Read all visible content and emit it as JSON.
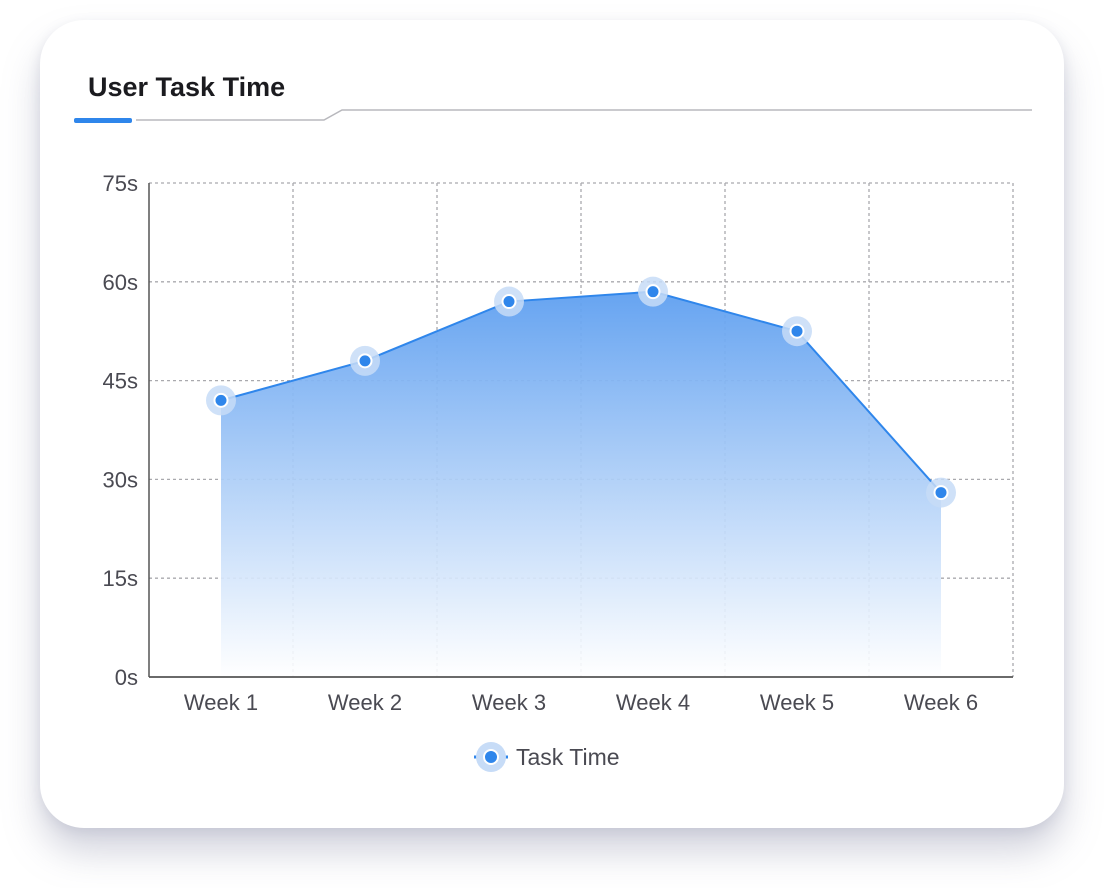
{
  "chart_data": {
    "type": "area",
    "title": "User Task Time",
    "categories": [
      "Week 1",
      "Week 2",
      "Week 3",
      "Week 4",
      "Week 5",
      "Week 6"
    ],
    "series": [
      {
        "name": "Task Time",
        "values": [
          42,
          48,
          57,
          58.5,
          52.5,
          28
        ]
      }
    ],
    "y_ticks": [
      "0s",
      "15s",
      "30s",
      "45s",
      "60s",
      "75s"
    ],
    "ylim": [
      0,
      75
    ],
    "grid": true,
    "legend_position": "bottom-center",
    "colors": {
      "line": "#2f86eb",
      "marker": "#2f86eb",
      "marker_halo": "#c7dcf7",
      "area_top": "#5e9ff0",
      "area_bottom": "#ffffff",
      "grid": "#a9a9ae",
      "axis": "#555555",
      "title_accent": "#2f86eb"
    }
  }
}
